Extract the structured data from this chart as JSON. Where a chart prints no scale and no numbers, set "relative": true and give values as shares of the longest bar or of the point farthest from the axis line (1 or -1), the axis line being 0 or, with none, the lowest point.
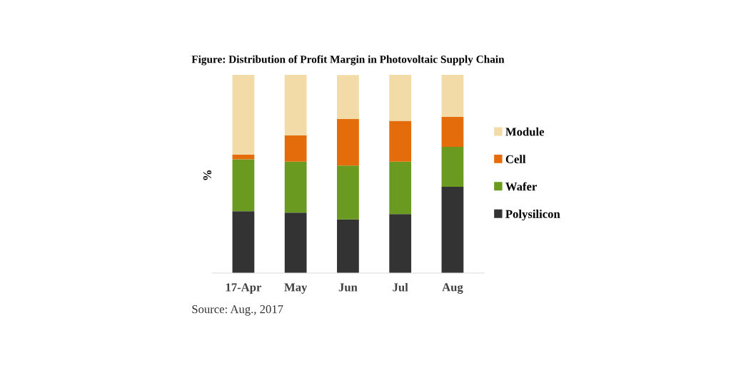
{
  "chart_data": {
    "type": "bar",
    "stacked": true,
    "relative": true,
    "title": "Figure: Distribution of Profit Margin in Photovoltaic Supply Chain",
    "ylabel": "%",
    "categories": [
      "17-Apr",
      "May",
      "Jun",
      "Jul",
      "Aug"
    ],
    "series": [
      {
        "name": "Polysilicon",
        "color": "#333333",
        "values": [
          0.312,
          0.305,
          0.271,
          0.298,
          0.435
        ]
      },
      {
        "name": "Wafer",
        "color": "#6a9a1f",
        "values": [
          0.262,
          0.257,
          0.271,
          0.264,
          0.202
        ]
      },
      {
        "name": "Cell",
        "color": "#e46c0a",
        "values": [
          0.024,
          0.132,
          0.235,
          0.206,
          0.151
        ]
      },
      {
        "name": "Module",
        "color": "#f2dba6",
        "values": [
          0.402,
          0.306,
          0.222,
          0.232,
          0.212
        ]
      }
    ],
    "legend": "right",
    "grid": false,
    "annotations": [
      "Source: Aug., 2017"
    ]
  }
}
